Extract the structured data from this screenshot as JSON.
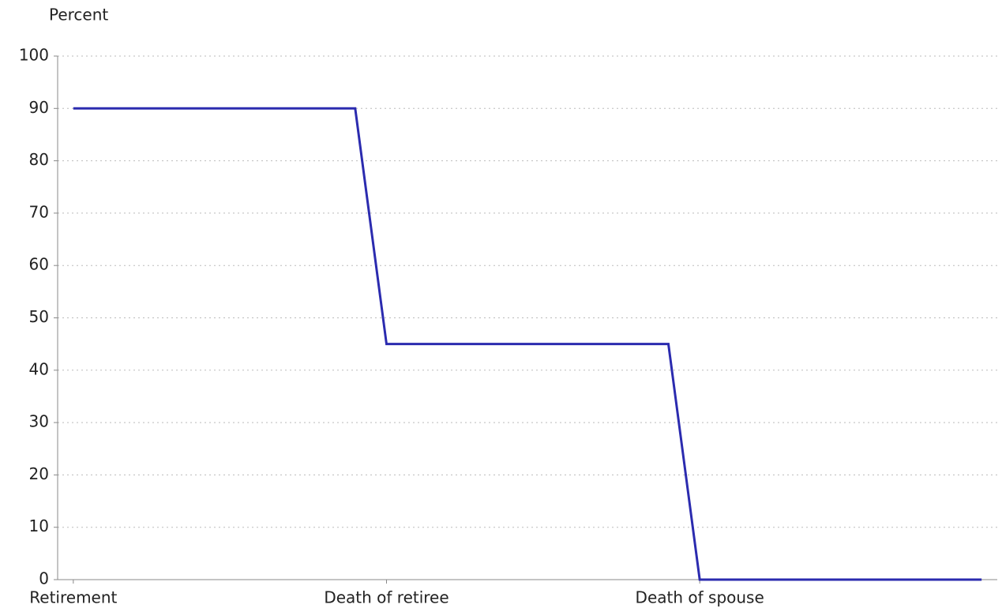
{
  "chart_data": {
    "type": "line",
    "y_label": "Percent",
    "x": [
      0,
      0.9,
      1,
      1.9,
      2,
      2.9
    ],
    "series": [
      {
        "name": "Percent",
        "color": "#2b2baf",
        "values": [
          90,
          90,
          45,
          45,
          0,
          0
        ]
      }
    ],
    "xlim": [
      -0.05,
      2.95
    ],
    "xticks": [
      {
        "value": 0,
        "label": "Retirement"
      },
      {
        "value": 1,
        "label": "Death of retiree"
      },
      {
        "value": 2,
        "label": "Death of spouse"
      }
    ],
    "ylim": [
      0,
      100
    ],
    "yticks": [
      0,
      10,
      20,
      30,
      40,
      50,
      60,
      70,
      80,
      90,
      100
    ],
    "grid": true
  }
}
